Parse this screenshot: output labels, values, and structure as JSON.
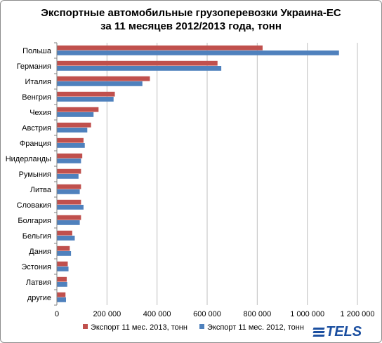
{
  "title": {
    "line1": "Экспортные автомобильные грузоперевозки  Украина-ЕС",
    "line2": "за 11 месяцев 2012/2013 года, тонн"
  },
  "logo": {
    "text": "TELS"
  },
  "colors": {
    "series2013": "#c0504d",
    "series2012": "#4f81bd",
    "grid": "#bfbfbf",
    "axis": "#808080"
  },
  "chart_data": {
    "type": "bar",
    "orientation": "horizontal",
    "title": "Экспортные автомобильные грузоперевозки  Украина-ЕС за 11 месяцев 2012/2013 года, тонн",
    "categories": [
      "Польша",
      "Германия",
      "Италия",
      "Венгрия",
      "Чехия",
      "Австрия",
      "Франция",
      "Нидерланды",
      "Румыния",
      "Литва",
      "Словакия",
      "Болгария",
      "Бельгия",
      "Дания",
      "Эстония",
      "Латвия",
      "другие"
    ],
    "series": [
      {
        "name": "Экспорт 11 мес. 2013, тонн",
        "values": [
          820000,
          640000,
          370000,
          230000,
          165000,
          135000,
          105000,
          100000,
          95000,
          95000,
          95000,
          95000,
          60000,
          50000,
          42000,
          38000,
          33000
        ]
      },
      {
        "name": "Экспорт 11 мес. 2012, тонн",
        "values": [
          1125000,
          655000,
          340000,
          225000,
          145000,
          120000,
          110000,
          95000,
          85000,
          90000,
          105000,
          90000,
          70000,
          55000,
          45000,
          40000,
          35000
        ]
      }
    ],
    "xlim": [
      0,
      1200000
    ],
    "xticks": [
      0,
      200000,
      400000,
      600000,
      800000,
      1000000,
      1200000
    ],
    "xtick_labels": [
      "0",
      "200 000",
      "400 000",
      "600 000",
      "800 000",
      "1 000 000",
      "1 200 000"
    ],
    "grid": true,
    "legend_position": "bottom"
  }
}
